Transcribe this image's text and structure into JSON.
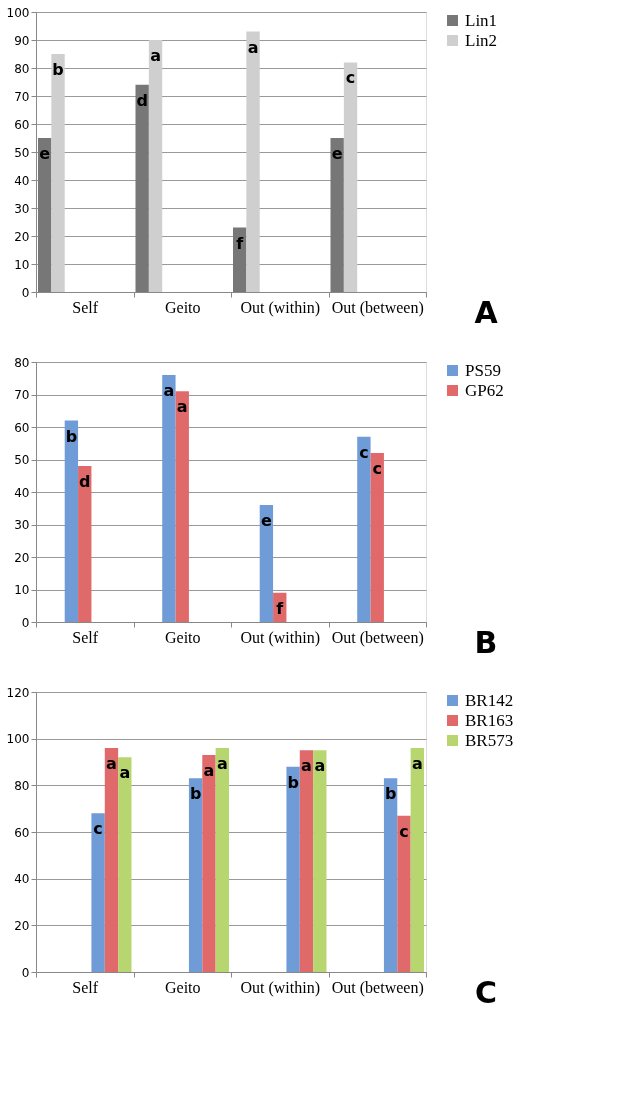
{
  "chart_data": [
    {
      "type": "bar",
      "categories": [
        "Self",
        "Geito",
        "Out (within)",
        "Out (between)"
      ],
      "ylim": [
        0,
        100
      ],
      "yticks": [
        0,
        10,
        20,
        30,
        40,
        50,
        60,
        70,
        80,
        90,
        100
      ],
      "grid": "y",
      "legend": "right",
      "annotations": [
        "A"
      ],
      "series": [
        {
          "name": "Lin1",
          "color": "#777777",
          "values": [
            55,
            74,
            23,
            55
          ],
          "value_labels": [
            "e",
            "d",
            "f",
            "e"
          ]
        },
        {
          "name": "Lin2",
          "color": "#cfcfcf",
          "values": [
            85,
            90,
            93,
            82
          ],
          "value_labels": [
            "b",
            "a",
            "a",
            "c"
          ]
        }
      ]
    },
    {
      "type": "bar",
      "categories": [
        "Self",
        "Geito",
        "Out (within)",
        "Out (between)"
      ],
      "ylim": [
        0,
        80
      ],
      "yticks": [
        0,
        10,
        20,
        30,
        40,
        50,
        60,
        70,
        80
      ],
      "grid": "y",
      "legend": "right",
      "annotations": [
        "B"
      ],
      "series": [
        {
          "name": "PS59",
          "color": "#6f9bd6",
          "values": [
            62,
            76,
            36,
            57
          ],
          "value_labels": [
            "b",
            "a",
            "e",
            "c"
          ]
        },
        {
          "name": "GP62",
          "color": "#e06a6a",
          "values": [
            48,
            71,
            9,
            52
          ],
          "value_labels": [
            "d",
            "a",
            "f",
            "c"
          ]
        }
      ]
    },
    {
      "type": "bar",
      "categories": [
        "Self",
        "Geito",
        "Out (within)",
        "Out (between)"
      ],
      "ylim": [
        0,
        120
      ],
      "yticks": [
        0,
        20,
        40,
        60,
        80,
        100,
        120
      ],
      "grid": "y",
      "legend": "right",
      "annotations": [
        "C"
      ],
      "series": [
        {
          "name": "BR142",
          "color": "#6f9bd6",
          "values": [
            68,
            83,
            88,
            83
          ],
          "value_labels": [
            "c",
            "b",
            "b",
            "b"
          ]
        },
        {
          "name": "BR163",
          "color": "#e06a6a",
          "values": [
            96,
            93,
            95,
            67
          ],
          "value_labels": [
            "a",
            "a",
            "a",
            "c"
          ]
        },
        {
          "name": "BR573",
          "color": "#b8d670",
          "values": [
            92,
            96,
            95,
            96
          ],
          "value_labels": [
            "a",
            "a",
            "a",
            "a"
          ]
        }
      ]
    }
  ]
}
